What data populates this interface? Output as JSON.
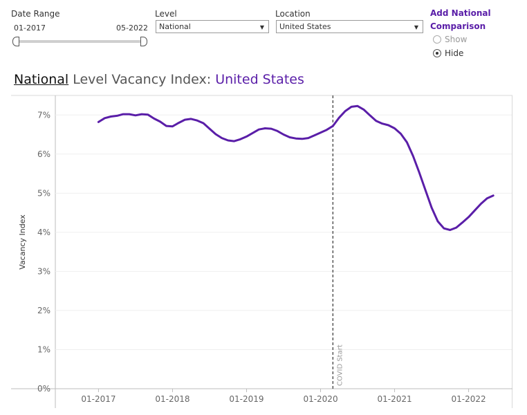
{
  "controls": {
    "date_range": {
      "label": "Date Range",
      "start": "01-2017",
      "end": "05-2022"
    },
    "level": {
      "label": "Level",
      "value": "National"
    },
    "location": {
      "label": "Location",
      "value": "United States"
    },
    "comparison": {
      "title_line1": "Add National",
      "title_line2": "Comparison",
      "options": [
        {
          "label": "Show",
          "selected": false
        },
        {
          "label": "Hide",
          "selected": true
        }
      ]
    }
  },
  "title": {
    "level": "National",
    "middle": " Level Vacancy Index: ",
    "location": "United States"
  },
  "chart_data": {
    "type": "line",
    "ylabel": "Vacancy Index",
    "ylim": [
      0,
      0.075
    ],
    "yticks": [
      0,
      0.01,
      0.02,
      0.03,
      0.04,
      0.05,
      0.06,
      0.07
    ],
    "ytick_labels": [
      "0%",
      "1%",
      "2%",
      "3%",
      "4%",
      "5%",
      "6%",
      "7%"
    ],
    "xlim": [
      "2016-06",
      "2022-08"
    ],
    "xticks": [
      "2017-01",
      "2018-01",
      "2019-01",
      "2020-01",
      "2021-01",
      "2022-01"
    ],
    "xtick_labels": [
      "01-2017",
      "01-2018",
      "01-2019",
      "01-2020",
      "01-2021",
      "01-2022"
    ],
    "grid": true,
    "line_color": "#5a1ea8",
    "annotation": {
      "label": "COVID Start",
      "x": "2020-03"
    },
    "series": [
      {
        "x": [
          "2017-01",
          "2017-02",
          "2017-03",
          "2017-04",
          "2017-05",
          "2017-06",
          "2017-07",
          "2017-08",
          "2017-09",
          "2017-10",
          "2017-11",
          "2017-12",
          "2018-01",
          "2018-02",
          "2018-03",
          "2018-04",
          "2018-05",
          "2018-06",
          "2018-07",
          "2018-08",
          "2018-09",
          "2018-10",
          "2018-11",
          "2018-12",
          "2019-01",
          "2019-02",
          "2019-03",
          "2019-04",
          "2019-05",
          "2019-06",
          "2019-07",
          "2019-08",
          "2019-09",
          "2019-10",
          "2019-11",
          "2019-12",
          "2020-01",
          "2020-02",
          "2020-03",
          "2020-04",
          "2020-05",
          "2020-06",
          "2020-07",
          "2020-08",
          "2020-09",
          "2020-10",
          "2020-11",
          "2020-12",
          "2021-01",
          "2021-02",
          "2021-03",
          "2021-04",
          "2021-05",
          "2021-06",
          "2021-07",
          "2021-08",
          "2021-09",
          "2021-10",
          "2021-11",
          "2021-12",
          "2022-01",
          "2022-02",
          "2022-03",
          "2022-04",
          "2022-05"
        ],
        "values": [
          0.0682,
          0.0692,
          0.0696,
          0.0698,
          0.0702,
          0.0702,
          0.0699,
          0.0702,
          0.0701,
          0.0691,
          0.0683,
          0.0672,
          0.0671,
          0.068,
          0.0688,
          0.069,
          0.0686,
          0.0679,
          0.0665,
          0.0651,
          0.0641,
          0.0635,
          0.0633,
          0.0638,
          0.0645,
          0.0654,
          0.0663,
          0.0666,
          0.0665,
          0.0659,
          0.065,
          0.0643,
          0.064,
          0.0639,
          0.0641,
          0.0648,
          0.0655,
          0.0662,
          0.0672,
          0.0693,
          0.071,
          0.0721,
          0.0723,
          0.0714,
          0.0699,
          0.0685,
          0.0678,
          0.0674,
          0.0666,
          0.0652,
          0.063,
          0.0595,
          0.0553,
          0.0508,
          0.0463,
          0.0428,
          0.041,
          0.0406,
          0.0412,
          0.0425,
          0.0439,
          0.0456,
          0.0473,
          0.0487,
          0.0494
        ]
      }
    ]
  }
}
